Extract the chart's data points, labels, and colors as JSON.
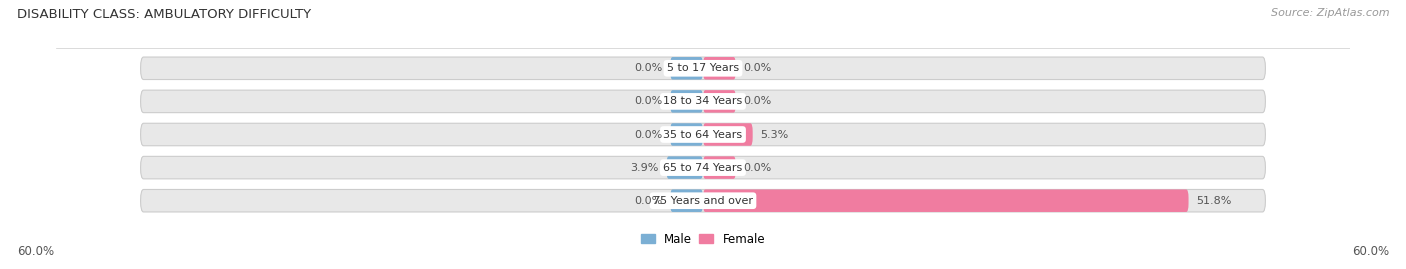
{
  "title": "DISABILITY CLASS: AMBULATORY DIFFICULTY",
  "source": "Source: ZipAtlas.com",
  "categories": [
    "5 to 17 Years",
    "18 to 34 Years",
    "35 to 64 Years",
    "65 to 74 Years",
    "75 Years and over"
  ],
  "male_values": [
    0.0,
    0.0,
    0.0,
    3.9,
    0.0
  ],
  "female_values": [
    0.0,
    0.0,
    5.3,
    0.0,
    51.8
  ],
  "x_max": 60.0,
  "male_color": "#7bafd4",
  "female_color": "#f07ca0",
  "bar_bg_color": "#e8e8e8",
  "bar_outline_color": "#cccccc",
  "label_color": "#555555",
  "title_color": "#333333",
  "source_color": "#999999",
  "title_fontsize": 9.5,
  "source_fontsize": 8,
  "tick_fontsize": 8.5,
  "value_fontsize": 8,
  "category_fontsize": 8,
  "legend_fontsize": 8.5,
  "axis_label": "60.0%",
  "min_stub": 3.5
}
